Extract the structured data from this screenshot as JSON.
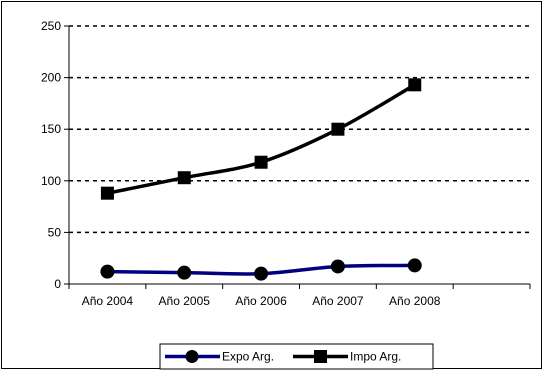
{
  "chart_data": {
    "type": "line",
    "categories": [
      "Año 2004",
      "Año 2005",
      "Año 2006",
      "Año 2007",
      "Año 2008"
    ],
    "ylim": [
      0,
      250
    ],
    "yticks": [
      0,
      50,
      100,
      150,
      200,
      250
    ],
    "grid": "horizontal dashed",
    "legend_position": "bottom",
    "series": [
      {
        "name": "Expo Arg.",
        "values": [
          12,
          11,
          10,
          17,
          18
        ],
        "color": "#000080",
        "marker": "circle"
      },
      {
        "name": "Impo Arg.",
        "values": [
          88,
          103,
          118,
          150,
          193
        ],
        "color": "#000000",
        "marker": "square"
      }
    ]
  }
}
